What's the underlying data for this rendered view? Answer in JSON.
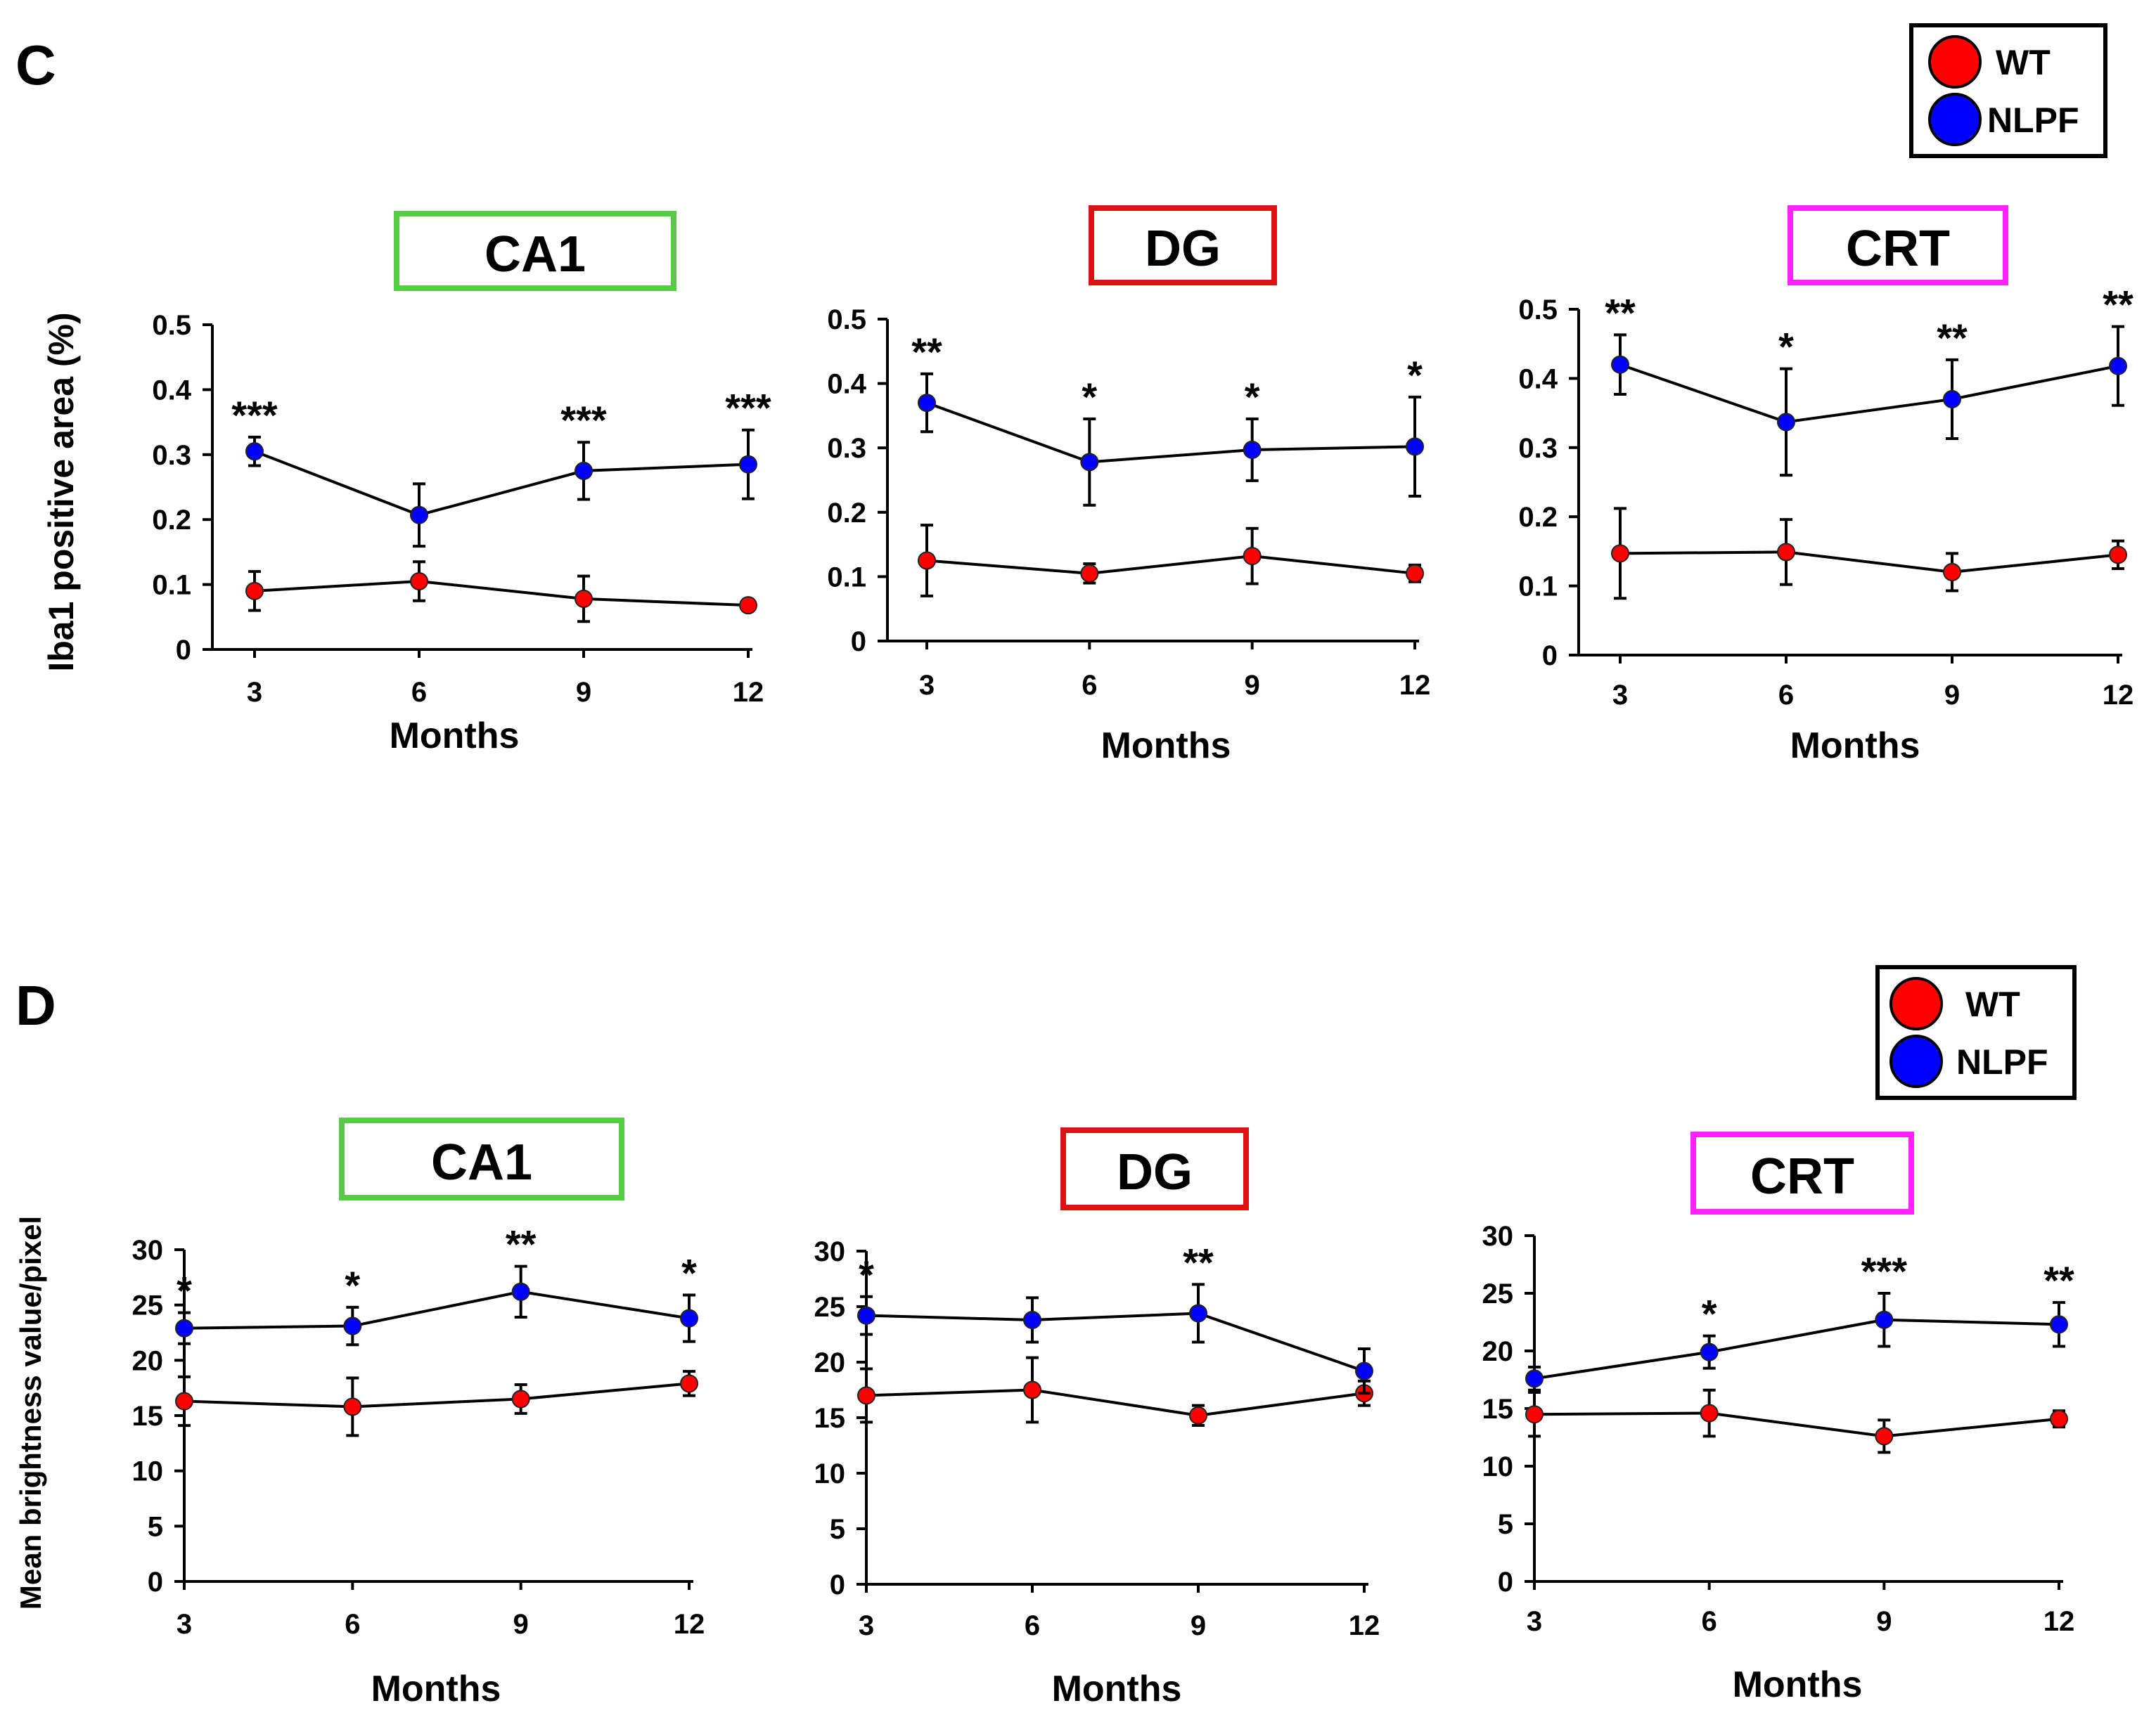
{
  "colors": {
    "wt": "#ff0000",
    "nlpf": "#0000ff",
    "axis": "#000000",
    "ca1": "#55cc44",
    "dg": "#dd1111",
    "crt": "#ff22ff"
  },
  "panel_c": {
    "letter": "C",
    "legend": {
      "wt": "WT",
      "nlpf": "NLPF"
    }
  },
  "panel_d": {
    "letter": "D",
    "legend": {
      "wt": "WT",
      "nlpf": "NLPF"
    }
  },
  "chart_data": [
    {
      "type": "line",
      "panel": "C",
      "title": "CA1",
      "title_color": "#55cc44",
      "xlabel": "Months",
      "ylabel": "Iba1 positive area (%)",
      "x": [
        3,
        6,
        9,
        12
      ],
      "x_tick_labels": [
        "3",
        "6",
        "9",
        "12"
      ],
      "ylim": [
        0,
        0.5
      ],
      "y_ticks": [
        0,
        0.1,
        0.2,
        0.3,
        0.4,
        0.5
      ],
      "y_tick_labels": [
        "0",
        "0.1",
        "0.2",
        "0.3",
        "0.4",
        "0.5"
      ],
      "grid": false,
      "series": [
        {
          "name": "WT",
          "color": "#ff0000",
          "values": [
            0.09,
            0.105,
            0.078,
            0.068
          ],
          "errors": [
            0.03,
            0.03,
            0.035,
            0.0
          ]
        },
        {
          "name": "NLPF",
          "color": "#0000ff",
          "values": [
            0.305,
            0.207,
            0.275,
            0.285
          ],
          "errors": [
            0.022,
            0.048,
            0.044,
            0.053
          ]
        }
      ],
      "significance": [
        "***",
        "",
        "***",
        "***"
      ]
    },
    {
      "type": "line",
      "panel": "C",
      "title": "DG",
      "title_color": "#dd1111",
      "xlabel": "Months",
      "ylabel": "",
      "x": [
        3,
        6,
        9,
        12
      ],
      "x_tick_labels": [
        "3",
        "6",
        "9",
        "12"
      ],
      "ylim": [
        0,
        0.5
      ],
      "y_ticks": [
        0,
        0.1,
        0.2,
        0.3,
        0.4,
        0.5
      ],
      "y_tick_labels": [
        "0",
        "0.1",
        "0.2",
        "0.3",
        "0.4",
        "0.5"
      ],
      "grid": false,
      "series": [
        {
          "name": "WT",
          "color": "#ff0000",
          "values": [
            0.125,
            0.105,
            0.132,
            0.105
          ],
          "errors": [
            0.055,
            0.015,
            0.043,
            0.013
          ]
        },
        {
          "name": "NLPF",
          "color": "#0000ff",
          "values": [
            0.37,
            0.278,
            0.297,
            0.302
          ],
          "errors": [
            0.045,
            0.067,
            0.048,
            0.077
          ]
        }
      ],
      "significance": [
        "**",
        "*",
        "*",
        "*"
      ]
    },
    {
      "type": "line",
      "panel": "C",
      "title": "CRT",
      "title_color": "#ff22ff",
      "xlabel": "Months",
      "ylabel": "",
      "x": [
        3,
        6,
        9,
        12
      ],
      "x_tick_labels": [
        "3",
        "6",
        "9",
        "12"
      ],
      "ylim": [
        0,
        0.5
      ],
      "y_ticks": [
        0,
        0.1,
        0.2,
        0.3,
        0.4,
        0.5
      ],
      "y_tick_labels": [
        "0",
        "0.1",
        "0.2",
        "0.3",
        "0.4",
        "0.5"
      ],
      "grid": false,
      "series": [
        {
          "name": "WT",
          "color": "#ff0000",
          "values": [
            0.147,
            0.149,
            0.12,
            0.145
          ],
          "errors": [
            0.065,
            0.047,
            0.027,
            0.02
          ]
        },
        {
          "name": "NLPF",
          "color": "#0000ff",
          "values": [
            0.42,
            0.337,
            0.37,
            0.418
          ],
          "errors": [
            0.043,
            0.077,
            0.057,
            0.057
          ]
        }
      ],
      "significance": [
        "**",
        "*",
        "**",
        "**"
      ]
    },
    {
      "type": "line",
      "panel": "D",
      "title": "CA1",
      "title_color": "#55cc44",
      "xlabel": "Months",
      "ylabel": "Mean brightness value/pixel",
      "x": [
        3,
        6,
        9,
        12
      ],
      "x_tick_labels": [
        "3",
        "6",
        "9",
        "12"
      ],
      "ylim": [
        0,
        30
      ],
      "y_ticks": [
        0,
        5,
        10,
        15,
        20,
        25,
        30
      ],
      "y_tick_labels": [
        "0",
        "5",
        "10",
        "15",
        "20",
        "25",
        "30"
      ],
      "grid": false,
      "series": [
        {
          "name": "WT",
          "color": "#ff0000",
          "values": [
            16.3,
            15.8,
            16.5,
            17.9
          ],
          "errors": [
            2.2,
            2.6,
            1.3,
            1.1
          ]
        },
        {
          "name": "NLPF",
          "color": "#0000ff",
          "values": [
            22.9,
            23.1,
            26.2,
            23.8
          ],
          "errors": [
            1.4,
            1.7,
            2.3,
            2.1
          ]
        }
      ],
      "significance": [
        "*",
        "*",
        "**",
        "*"
      ]
    },
    {
      "type": "line",
      "panel": "D",
      "title": "DG",
      "title_color": "#dd1111",
      "xlabel": "Months",
      "ylabel": "",
      "x": [
        3,
        6,
        9,
        12
      ],
      "x_tick_labels": [
        "3",
        "6",
        "9",
        "12"
      ],
      "ylim": [
        0,
        30
      ],
      "y_ticks": [
        0,
        5,
        10,
        15,
        20,
        25,
        30
      ],
      "y_tick_labels": [
        "0",
        "5",
        "10",
        "15",
        "20",
        "25",
        "30"
      ],
      "grid": false,
      "series": [
        {
          "name": "WT",
          "color": "#ff0000",
          "values": [
            17.0,
            17.5,
            15.2,
            17.2
          ],
          "errors": [
            2.4,
            2.9,
            0.9,
            1.1
          ]
        },
        {
          "name": "NLPF",
          "color": "#0000ff",
          "values": [
            24.2,
            23.8,
            24.4,
            19.2
          ],
          "errors": [
            1.7,
            2.0,
            2.6,
            2.0
          ]
        }
      ],
      "significance": [
        "*",
        "",
        "**",
        ""
      ]
    },
    {
      "type": "line",
      "panel": "D",
      "title": "CRT",
      "title_color": "#ff22ff",
      "xlabel": "Months",
      "ylabel": "",
      "x": [
        3,
        6,
        9,
        12
      ],
      "x_tick_labels": [
        "3",
        "6",
        "9",
        "12"
      ],
      "ylim": [
        0,
        30
      ],
      "y_ticks": [
        0,
        5,
        10,
        15,
        20,
        25,
        30
      ],
      "y_tick_labels": [
        "0",
        "5",
        "10",
        "15",
        "20",
        "25",
        "30"
      ],
      "grid": false,
      "series": [
        {
          "name": "WT",
          "color": "#ff0000",
          "values": [
            14.5,
            14.6,
            12.6,
            14.1
          ],
          "errors": [
            1.9,
            2.0,
            1.4,
            0.7
          ]
        },
        {
          "name": "NLPF",
          "color": "#0000ff",
          "values": [
            17.6,
            19.9,
            22.7,
            22.3
          ],
          "errors": [
            1.0,
            1.4,
            2.3,
            1.9
          ]
        }
      ],
      "significance": [
        "",
        "*",
        "***",
        "**"
      ]
    }
  ]
}
